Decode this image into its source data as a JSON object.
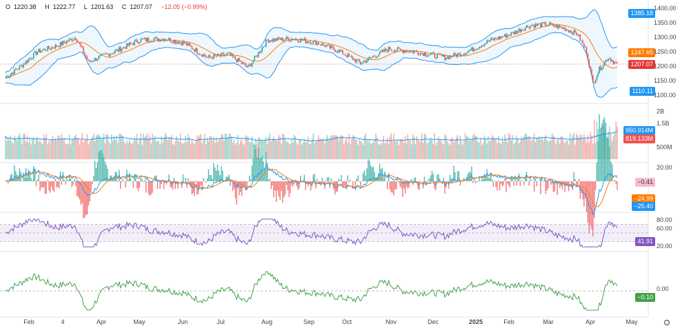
{
  "ohlc": {
    "o_label": "O",
    "o": "1220.38",
    "h_label": "H",
    "h": "1222.77",
    "l_label": "L",
    "l": "1201.63",
    "c_label": "C",
    "c": "1207.07",
    "change": "−12.05 (−0.99%)"
  },
  "colors": {
    "up": "#26a69a",
    "down": "#ef5350",
    "band": "#2196f3",
    "ma": "#ff7a00",
    "rsi": "#7e57c2",
    "osc": "#43a047"
  },
  "price_axis": {
    "ticks": [
      "1400.00",
      "1350.00",
      "1300.00",
      "1250.00",
      "1200.00",
      "1150.00",
      "1100.00"
    ],
    "tags": {
      "upper": "1385.18",
      "ma": "1247.65",
      "last": "1207.07",
      "lower": "1110.11"
    }
  },
  "volume_axis": {
    "ticks": [
      "2B",
      "1.5B",
      "500M"
    ],
    "tags": {
      "avg": "950.914M",
      "last": "819.133M"
    }
  },
  "macd_axis": {
    "ticks": [
      "20.00"
    ],
    "tags": {
      "hist": "−0.41",
      "signal": "−24.99",
      "macd": "−25.40"
    }
  },
  "rsi_axis": {
    "ticks": [
      "80.00",
      "60.00",
      "20.00"
    ],
    "tag": "41.91"
  },
  "osc_axis": {
    "ticks": [
      "0.00"
    ],
    "tag": "−0.10"
  },
  "x_labels": [
    "Feb",
    "4",
    "Apr",
    "May",
    "Jun",
    "Jul",
    "Aug",
    "Sep",
    "Oct",
    "Nov",
    "Dec",
    "2025",
    "Feb",
    "Mar",
    "Apr",
    "May"
  ],
  "chart_data": {
    "type": "candlestick",
    "x_range": [
      "Jan 2024",
      "Apr 2025"
    ],
    "price_range": [
      1090,
      1410
    ],
    "last_close": 1207.07,
    "keypoints": {
      "x": [
        0,
        12,
        25,
        40,
        55,
        65,
        85,
        105,
        125,
        140,
        158,
        175,
        190,
        205,
        225,
        245,
        262,
        278,
        300,
        320,
        345,
        362,
        380,
        395,
        410,
        425,
        438,
        448,
        455,
        460,
        465,
        472,
        479
      ],
      "price": [
        1160,
        1200,
        1250,
        1270,
        1300,
        1215,
        1250,
        1290,
        1295,
        1280,
        1230,
        1240,
        1195,
        1290,
        1295,
        1280,
        1250,
        1210,
        1260,
        1250,
        1230,
        1250,
        1290,
        1310,
        1340,
        1345,
        1330,
        1310,
        1250,
        1140,
        1190,
        1230,
        1207
      ]
    },
    "bars": 480
  }
}
